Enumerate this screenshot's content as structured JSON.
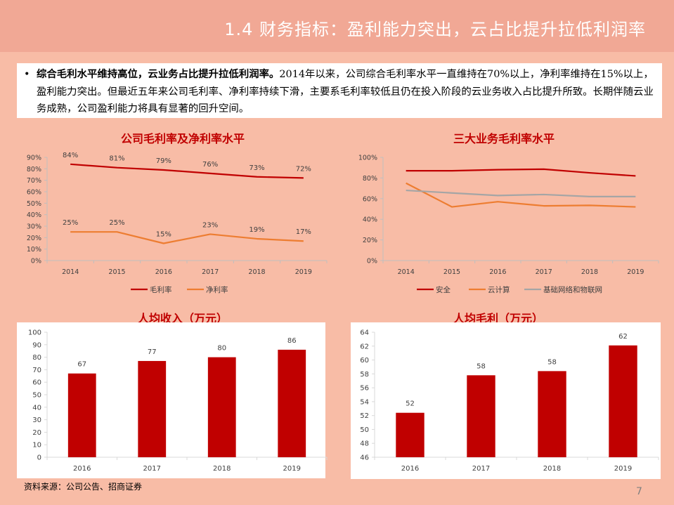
{
  "slide": {
    "title": "1.4 财务指标：盈利能力突出，云占比提升拉低利润率",
    "summary_lead": "综合毛利水平维持高位，云业务占比提升拉低利润率。",
    "summary_body": "2014年以来，公司综合毛利率水平一直维持在70%以上，净利率维持在15%以上，盈利能力突出。但最近五年来公司毛利率、净利率持续下滑，主要系毛利率较低且仍在投入阶段的云业务收入占比提升所致。长期伴随云业务成熟，公司盈利能力将具有显著的回升空间。",
    "source": "资料来源：公司公告、招商证券",
    "page_number": "7",
    "colors": {
      "red": "#C00000",
      "orange": "#ED7D31",
      "gray": "#A5A5A5",
      "bar": "#C00000"
    }
  },
  "chart_data": [
    {
      "type": "line",
      "title": "公司毛利率及净利率水平",
      "categories": [
        "2014",
        "2015",
        "2016",
        "2017",
        "2018",
        "2019"
      ],
      "ylim": [
        0,
        90
      ],
      "yticks": [
        "0%",
        "10%",
        "20%",
        "30%",
        "40%",
        "50%",
        "60%",
        "70%",
        "80%",
        "90%"
      ],
      "series": [
        {
          "name": "毛利率",
          "values": [
            84,
            81,
            79,
            76,
            73,
            72
          ],
          "labels": [
            "84%",
            "81%",
            "79%",
            "76%",
            "73%",
            "72%"
          ],
          "color": "#C00000"
        },
        {
          "name": "净利率",
          "values": [
            25,
            25,
            15,
            23,
            19,
            17
          ],
          "labels": [
            "25%",
            "25%",
            "15%",
            "23%",
            "19%",
            "17%"
          ],
          "color": "#ED7D31"
        }
      ],
      "legend": "bottom",
      "grid": false
    },
    {
      "type": "line",
      "title": "三大业务毛利率水平",
      "categories": [
        "2014",
        "2015",
        "2016",
        "2017",
        "2018",
        "2019"
      ],
      "ylim": [
        0,
        100
      ],
      "yticks": [
        "0%",
        "20%",
        "40%",
        "60%",
        "80%",
        "100%"
      ],
      "series": [
        {
          "name": "安全",
          "values": [
            87,
            87,
            88,
            88.5,
            85,
            82
          ],
          "color": "#C00000"
        },
        {
          "name": "云计算",
          "values": [
            75,
            52,
            57,
            53,
            53.5,
            52
          ],
          "color": "#ED7D31"
        },
        {
          "name": "基础网络和物联网",
          "values": [
            68,
            65.5,
            63,
            64,
            62,
            62
          ],
          "color": "#A5A5A5"
        }
      ],
      "legend": "bottom",
      "grid": false
    },
    {
      "type": "bar",
      "title": "人均收入（万元）",
      "categories": [
        "2016",
        "2017",
        "2018",
        "2019"
      ],
      "values": [
        67,
        77,
        80,
        86
      ],
      "labels": [
        "67",
        "77",
        "80",
        "86"
      ],
      "ylim": [
        0,
        100
      ],
      "yticks": [
        "0",
        "10",
        "20",
        "30",
        "40",
        "50",
        "60",
        "70",
        "80",
        "90",
        "100"
      ],
      "color": "#C00000",
      "grid": false
    },
    {
      "type": "bar",
      "title": "人均毛利（万元）",
      "categories": [
        "2016",
        "2017",
        "2018",
        "2019"
      ],
      "values": [
        52.4,
        57.8,
        58.4,
        62.1
      ],
      "labels": [
        "52",
        "58",
        "58",
        "62"
      ],
      "ylim": [
        46,
        64
      ],
      "yticks": [
        "46",
        "48",
        "50",
        "52",
        "54",
        "56",
        "58",
        "60",
        "62",
        "64"
      ],
      "color": "#C00000",
      "grid": false
    }
  ]
}
